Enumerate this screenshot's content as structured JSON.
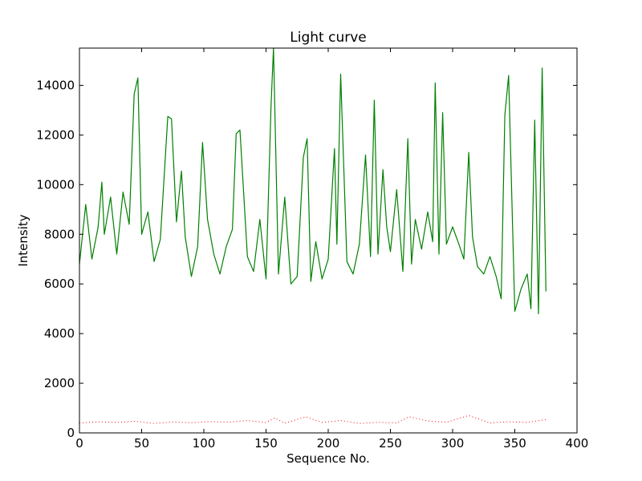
{
  "chart_data": {
    "type": "line",
    "title": "Light curve",
    "xlabel": "Sequence No.",
    "ylabel": "Intensity",
    "xlim": [
      0,
      400
    ],
    "ylim": [
      0,
      15500
    ],
    "xticks": [
      0,
      50,
      100,
      150,
      200,
      250,
      300,
      350,
      400
    ],
    "yticks": [
      0,
      2000,
      4000,
      6000,
      8000,
      10000,
      12000,
      14000
    ],
    "grid": false,
    "legend": "none",
    "series": [
      {
        "color": "#008000",
        "style": "solid",
        "x": [
          0,
          5,
          10,
          15,
          18,
          20,
          25,
          30,
          35,
          40,
          44,
          47,
          50,
          55,
          60,
          65,
          71,
          74,
          78,
          82,
          85,
          90,
          95,
          99,
          103,
          108,
          113,
          118,
          123,
          126,
          129,
          135,
          140,
          145,
          150,
          154,
          156,
          160,
          165,
          170,
          175,
          180,
          183,
          186,
          190,
          195,
          200,
          205,
          207,
          210,
          215,
          220,
          225,
          230,
          234,
          237,
          240,
          244,
          247,
          250,
          255,
          260,
          264,
          267,
          270,
          275,
          280,
          284,
          286,
          289,
          292,
          295,
          300,
          305,
          309,
          313,
          316,
          320,
          325,
          330,
          335,
          339,
          342,
          345,
          350,
          355,
          360,
          363,
          366,
          369,
          372,
          375
        ],
        "y": [
          6800,
          9200,
          7000,
          8300,
          10100,
          8000,
          9500,
          7200,
          9700,
          8400,
          13650,
          14300,
          8000,
          8900,
          6900,
          7800,
          12750,
          12650,
          8500,
          10550,
          7900,
          6300,
          7500,
          11700,
          8600,
          7200,
          6400,
          7500,
          8200,
          12050,
          12200,
          7100,
          6500,
          8600,
          6200,
          13150,
          15500,
          6400,
          9500,
          6000,
          6300,
          11100,
          11850,
          6100,
          7700,
          6200,
          7000,
          11450,
          7600,
          14450,
          6900,
          6400,
          7600,
          11200,
          7100,
          13400,
          7200,
          10600,
          8300,
          7300,
          9800,
          6500,
          11850,
          6800,
          8600,
          7400,
          8900,
          7700,
          14100,
          7200,
          12900,
          7600,
          8300,
          7600,
          7000,
          11300,
          7900,
          6700,
          6400,
          7100,
          6300,
          5400,
          12800,
          14400,
          4900,
          5800,
          6400,
          5000,
          12600,
          4800,
          14700,
          5700
        ]
      },
      {
        "color": "#ff0000",
        "style": "dotted",
        "x": [
          0,
          15,
          30,
          45,
          60,
          75,
          90,
          105,
          120,
          135,
          150,
          157,
          165,
          182,
          195,
          210,
          225,
          240,
          255,
          265,
          280,
          295,
          313,
          330,
          345,
          360,
          375
        ],
        "y": [
          400,
          450,
          420,
          470,
          380,
          440,
          410,
          460,
          430,
          500,
          420,
          600,
          390,
          650,
          420,
          500,
          380,
          430,
          400,
          650,
          480,
          430,
          700,
          400,
          450,
          420,
          540
        ]
      }
    ]
  }
}
